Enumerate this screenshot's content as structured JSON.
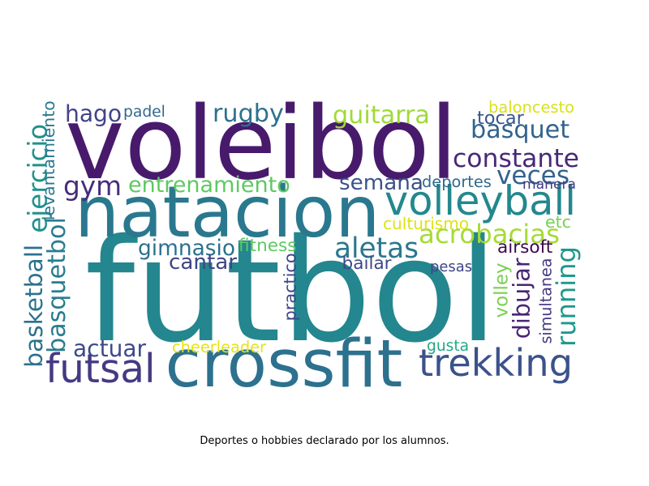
{
  "caption": "Deportes o hobbies declarado por los alumnos.",
  "words": [
    {
      "text": "futbol",
      "color": "#24868e",
      "orientation": "horizontal"
    },
    {
      "text": "voleibol",
      "color": "#481a6c",
      "orientation": "horizontal"
    },
    {
      "text": "natacion",
      "color": "#2a788e",
      "orientation": "horizontal"
    },
    {
      "text": "crossfit",
      "color": "#2c718e",
      "orientation": "horizontal"
    },
    {
      "text": "trekking",
      "color": "#3b528b",
      "orientation": "horizontal"
    },
    {
      "text": "futsal",
      "color": "#443a83",
      "orientation": "horizontal"
    },
    {
      "text": "volleyball",
      "color": "#23888e",
      "orientation": "horizontal"
    },
    {
      "text": "gym",
      "color": "#472d7b",
      "orientation": "horizontal"
    },
    {
      "text": "rugby",
      "color": "#2c718e",
      "orientation": "horizontal"
    },
    {
      "text": "hago",
      "color": "#414487",
      "orientation": "horizontal"
    },
    {
      "text": "guitarra",
      "color": "#a0da39",
      "orientation": "horizontal"
    },
    {
      "text": "basquet",
      "color": "#33638d",
      "orientation": "horizontal"
    },
    {
      "text": "tocar",
      "color": "#39568c",
      "orientation": "horizontal"
    },
    {
      "text": "constante",
      "color": "#482878",
      "orientation": "horizontal"
    },
    {
      "text": "veces",
      "color": "#33638d",
      "orientation": "horizontal"
    },
    {
      "text": "semana",
      "color": "#3b528b",
      "orientation": "horizontal"
    },
    {
      "text": "entrenamiento",
      "color": "#5ec962",
      "orientation": "horizontal"
    },
    {
      "text": "acrobacias",
      "color": "#a5db36",
      "orientation": "horizontal"
    },
    {
      "text": "aletas",
      "color": "#2a788e",
      "orientation": "horizontal"
    },
    {
      "text": "gimnasio",
      "color": "#2c718e",
      "orientation": "horizontal"
    },
    {
      "text": "cantar",
      "color": "#414487",
      "orientation": "horizontal"
    },
    {
      "text": "actuar",
      "color": "#3e4989",
      "orientation": "horizontal"
    },
    {
      "text": "padel",
      "color": "#31688e",
      "orientation": "horizontal"
    },
    {
      "text": "baloncesto",
      "color": "#d8e219",
      "orientation": "horizontal"
    },
    {
      "text": "deportes",
      "color": "#31688e",
      "orientation": "horizontal"
    },
    {
      "text": "manera",
      "color": "#443a83",
      "orientation": "horizontal"
    },
    {
      "text": "culturismo",
      "color": "#dde318",
      "orientation": "horizontal"
    },
    {
      "text": "etc",
      "color": "#75d054",
      "orientation": "horizontal"
    },
    {
      "text": "airsoft",
      "color": "#3e0751",
      "orientation": "horizontal"
    },
    {
      "text": "fitness",
      "color": "#5ec962",
      "orientation": "horizontal"
    },
    {
      "text": "bailar",
      "color": "#3e4989",
      "orientation": "horizontal"
    },
    {
      "text": "pesas",
      "color": "#414487",
      "orientation": "horizontal"
    },
    {
      "text": "cheerleader",
      "color": "#e5e419",
      "orientation": "horizontal"
    },
    {
      "text": "gusta",
      "color": "#22a884",
      "orientation": "horizontal"
    },
    {
      "text": "ejercicio",
      "color": "#21918c",
      "orientation": "vertical"
    },
    {
      "text": "levantamiento",
      "color": "#2a788e",
      "orientation": "vertical"
    },
    {
      "text": "basquetbol",
      "color": "#287d8e",
      "orientation": "vertical"
    },
    {
      "text": "basketball",
      "color": "#2c718e",
      "orientation": "vertical"
    },
    {
      "text": "running",
      "color": "#1f988b",
      "orientation": "vertical"
    },
    {
      "text": "dibujar",
      "color": "#482475",
      "orientation": "vertical"
    },
    {
      "text": "practico",
      "color": "#404688",
      "orientation": "vertical"
    },
    {
      "text": "volley",
      "color": "#7ad151",
      "orientation": "vertical"
    },
    {
      "text": "simultanea",
      "color": "#443983",
      "orientation": "vertical"
    }
  ]
}
